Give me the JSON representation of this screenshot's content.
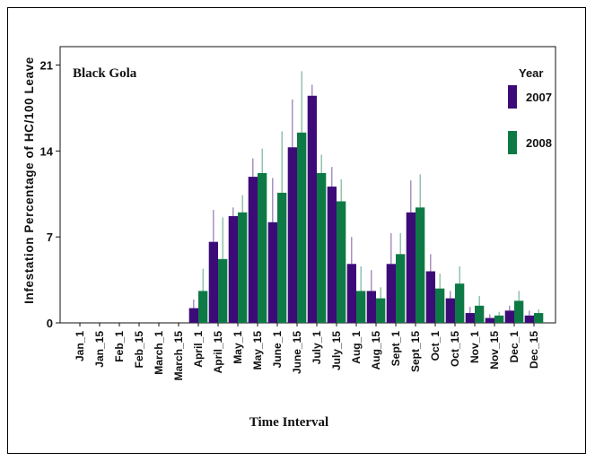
{
  "chart_data": {
    "type": "bar",
    "title": "",
    "panel_label": "Black Gola",
    "xlabel": "Time Interval",
    "ylabel": "Infestation Percentage of HC/100 Leave",
    "ylim": [
      0,
      22.5
    ],
    "yticks": [
      0,
      7,
      14,
      21
    ],
    "grid": false,
    "legend": {
      "title": "Year",
      "placement": "top-right"
    },
    "categories": [
      "Jan_1",
      "Jan_15",
      "Feb_1",
      "Feb_15",
      "March_1",
      "March_15",
      "April_1",
      "April_15",
      "May_1",
      "May_15",
      "June_1",
      "June_15",
      "July_1",
      "July_15",
      "Aug_1",
      "Aug_15",
      "Sept_1",
      "Sept_15",
      "Oct_1",
      "Oct_15",
      "Nov_1",
      "Nov_15",
      "Dec_1",
      "Dec_15"
    ],
    "series": [
      {
        "name": "2007",
        "color": "#3d0b78",
        "values": [
          0,
          0,
          0,
          0,
          0,
          0,
          1.2,
          6.6,
          8.7,
          11.9,
          8.2,
          14.3,
          18.5,
          11.1,
          4.8,
          2.6,
          4.8,
          9.0,
          4.2,
          2.0,
          0.8,
          0.4,
          1.0,
          0.6
        ],
        "errors": [
          0,
          0,
          0,
          0,
          0,
          0,
          0.7,
          2.6,
          0.7,
          1.5,
          3.6,
          3.9,
          0.9,
          1.6,
          2.2,
          1.7,
          2.5,
          2.6,
          1.4,
          0.6,
          0.5,
          0.3,
          0.4,
          0.4
        ]
      },
      {
        "name": "2008",
        "color": "#0d7a45",
        "values": [
          0,
          0,
          0,
          0,
          0,
          0,
          2.6,
          5.2,
          9.0,
          12.2,
          10.6,
          15.5,
          12.2,
          9.9,
          2.6,
          2.0,
          5.6,
          9.4,
          2.8,
          3.2,
          1.4,
          0.6,
          1.8,
          0.8
        ],
        "errors": [
          0,
          0,
          0,
          0,
          0,
          0,
          1.8,
          3.4,
          1.4,
          2.0,
          5.0,
          5.0,
          1.5,
          1.8,
          2.0,
          0.9,
          1.7,
          2.7,
          1.2,
          1.4,
          0.8,
          0.3,
          0.8,
          0.3
        ]
      }
    ]
  }
}
